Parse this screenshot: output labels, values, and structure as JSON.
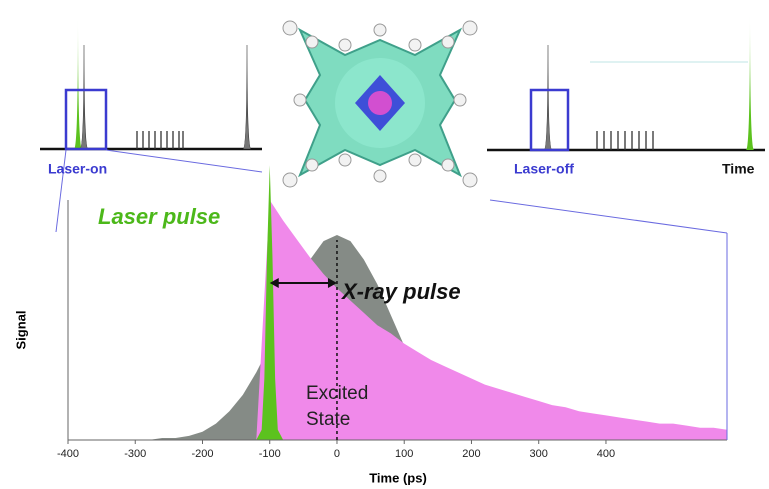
{
  "chart_data": {
    "type": "area",
    "xlabel": "Time (ps)",
    "ylabel": "Signal",
    "xlim": [
      -400,
      580
    ],
    "ylim": [
      0,
      1.4
    ],
    "xticks": [
      -400,
      -300,
      -200,
      -100,
      0,
      100,
      200,
      300,
      400
    ],
    "x": [
      -400,
      -380,
      -360,
      -340,
      -320,
      -300,
      -280,
      -260,
      -240,
      -220,
      -200,
      -180,
      -160,
      -140,
      -120,
      -100,
      -80,
      -60,
      -40,
      -20,
      0,
      20,
      40,
      60,
      80,
      100,
      120,
      140,
      160,
      180,
      200,
      220,
      240,
      260,
      280,
      300,
      320,
      340,
      360,
      380,
      400,
      420,
      440,
      460,
      480,
      500,
      520,
      540,
      560,
      580
    ],
    "series": [
      {
        "name": "X-ray pulse",
        "color": "#858b86",
        "values": [
          0,
          0,
          0,
          0,
          0,
          0,
          0,
          0.01,
          0.01,
          0.02,
          0.04,
          0.08,
          0.14,
          0.22,
          0.33,
          0.46,
          0.61,
          0.76,
          0.88,
          0.97,
          1,
          0.97,
          0.88,
          0.76,
          0.61,
          0.46,
          0.33,
          0.22,
          0.14,
          0.08,
          0.04,
          0.02,
          0.01,
          0.01,
          0,
          0,
          0,
          0,
          0,
          0,
          0,
          0,
          0,
          0,
          0,
          0,
          0,
          0,
          0,
          0
        ]
      },
      {
        "name": "Excited State",
        "color": "#f089ea",
        "values": [
          0,
          0,
          0,
          0,
          0,
          0,
          0,
          0,
          0,
          0,
          0,
          0,
          0,
          0,
          0,
          1.17,
          1.07,
          0.98,
          0.89,
          0.81,
          0.74,
          0.68,
          0.62,
          0.56,
          0.52,
          0.47,
          0.43,
          0.39,
          0.36,
          0.33,
          0.3,
          0.27,
          0.25,
          0.23,
          0.21,
          0.19,
          0.17,
          0.16,
          0.14,
          0.13,
          0.12,
          0.11,
          0.1,
          0.09,
          0.08,
          0.08,
          0.07,
          0.06,
          0.06,
          0.05
        ]
      },
      {
        "name": "Laser pulse",
        "color": "#5cc21e",
        "x": [
          -120,
          -112,
          -108,
          -104,
          -100,
          -96,
          -92,
          -88,
          -80
        ],
        "values": [
          0,
          0.05,
          0.3,
          0.9,
          1.34,
          0.9,
          0.3,
          0.05,
          0
        ]
      }
    ],
    "annotations": [
      "Laser pulse",
      "X-ray pulse",
      "Excited State"
    ]
  },
  "insets": {
    "left_label": "Laser-on",
    "right_label": "Laser-off",
    "right_axis_label": "Time"
  }
}
